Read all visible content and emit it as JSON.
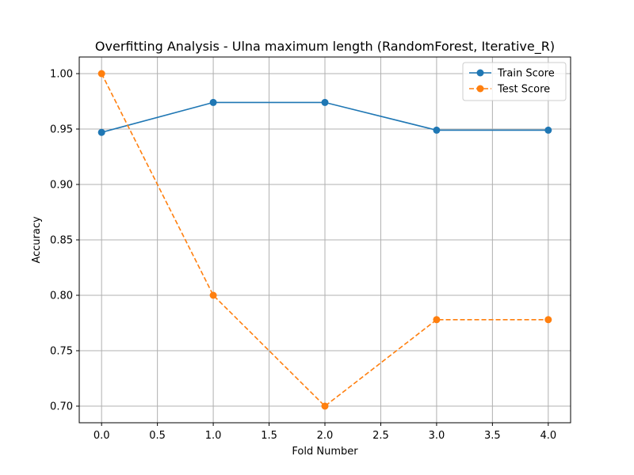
{
  "chart_data": {
    "type": "line",
    "title": "Overfitting Analysis - Ulna maximum length (RandomForest, Iterative_R)",
    "xlabel": "Fold Number",
    "ylabel": "Accuracy",
    "xlim": [
      -0.2,
      4.2
    ],
    "ylim": [
      0.685,
      1.015
    ],
    "xticks": [
      0.0,
      0.5,
      1.0,
      1.5,
      2.0,
      2.5,
      3.0,
      3.5,
      4.0
    ],
    "xtick_labels": [
      "0.0",
      "0.5",
      "1.0",
      "1.5",
      "2.0",
      "2.5",
      "3.0",
      "3.5",
      "4.0"
    ],
    "yticks": [
      0.7,
      0.75,
      0.8,
      0.85,
      0.9,
      0.95,
      1.0
    ],
    "ytick_labels": [
      "0.70",
      "0.75",
      "0.80",
      "0.85",
      "0.90",
      "0.95",
      "1.00"
    ],
    "grid": true,
    "legend_position": "top-right",
    "x": [
      0,
      1,
      2,
      3,
      4
    ],
    "series": [
      {
        "name": "Train Score",
        "values": [
          0.947,
          0.974,
          0.974,
          0.949,
          0.949
        ],
        "color": "#1f77b4",
        "dashed": false
      },
      {
        "name": "Test Score",
        "values": [
          1.0,
          0.8,
          0.7,
          0.778,
          0.778
        ],
        "color": "#ff7f0e",
        "dashed": true
      }
    ]
  }
}
